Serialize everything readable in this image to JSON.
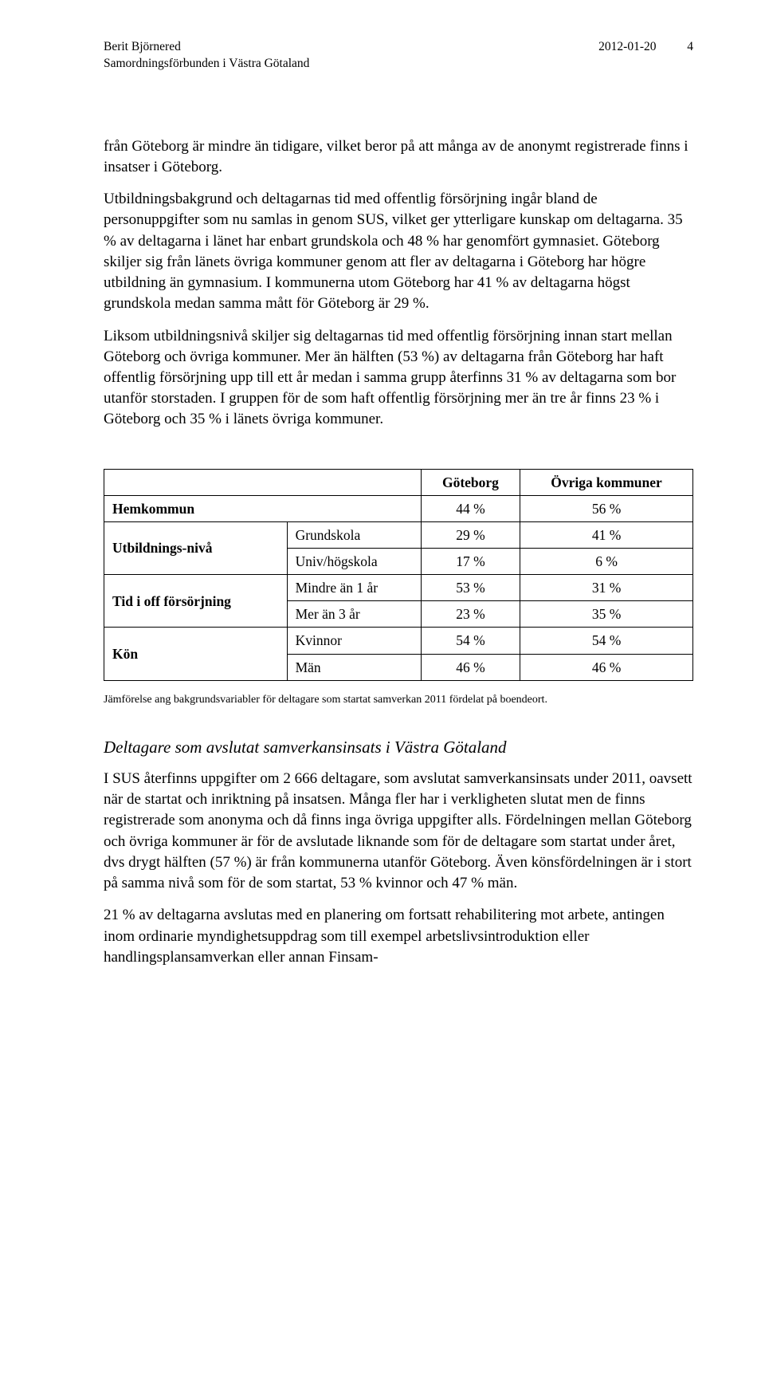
{
  "header": {
    "author": "Berit Björnered",
    "org": "Samordningsförbunden i Västra Götaland",
    "date": "2012-01-20",
    "page": "4"
  },
  "para1": "från Göteborg är mindre än tidigare, vilket beror på att många av de anonymt registrerade finns i insatser i Göteborg.",
  "para2": "Utbildningsbakgrund och deltagarnas tid med offentlig försörjning ingår bland de personuppgifter som nu samlas in genom SUS, vilket ger ytterligare kunskap om deltagarna. 35 % av deltagarna i länet har enbart grundskola och 48 % har genomfört gymnasiet. Göteborg skiljer sig från länets övriga kommuner genom att fler av deltagarna i Göteborg har högre utbildning än gymnasium. I kommunerna utom Göteborg har 41 % av deltagarna högst grundskola medan samma mått för Göteborg är 29 %.",
  "para3": "Liksom utbildningsnivå skiljer sig deltagarnas tid med offentlig försörjning innan start mellan Göteborg och övriga kommuner. Mer än hälften (53 %) av deltagarna från Göteborg har haft offentlig försörjning upp till ett år medan i samma grupp återfinns 31 % av deltagarna som bor utanför storstaden. I gruppen för de som haft offentlig försörjning mer än tre år finns 23 % i Göteborg och 35 % i länets övriga kommuner.",
  "table": {
    "col_goteborg": "Göteborg",
    "col_ovriga": "Övriga kommuner",
    "rows": {
      "hemkommun": {
        "label": "Hemkommun",
        "g": "44 %",
        "o": "56 %"
      },
      "utbildning": {
        "label": "Utbildnings-nivå",
        "r1": {
          "label": "Grundskola",
          "g": "29 %",
          "o": "41 %"
        },
        "r2": {
          "label": "Univ/högskola",
          "g": "17 %",
          "o": "6 %"
        }
      },
      "tid": {
        "label": "Tid i off försörjning",
        "r1": {
          "label": "Mindre än 1 år",
          "g": "53 %",
          "o": "31 %"
        },
        "r2": {
          "label": "Mer än 3 år",
          "g": "23 %",
          "o": "35 %"
        }
      },
      "kon": {
        "label": "Kön",
        "r1": {
          "label": "Kvinnor",
          "g": "54 %",
          "o": "54 %"
        },
        "r2": {
          "label": "Män",
          "g": "46 %",
          "o": "46 %"
        }
      }
    }
  },
  "caption": "Jämförelse ang bakgrundsvariabler för deltagare som startat samverkan 2011 fördelat på boendeort.",
  "section_heading": "Deltagare som avslutat samverkansinsats i Västra Götaland",
  "para4": "I SUS återfinns uppgifter om 2 666 deltagare, som avslutat samverkansinsats under 2011, oavsett när de startat och inriktning på insatsen. Många fler har i verkligheten slutat men de finns registrerade som anonyma och då finns inga övriga uppgifter alls. Fördelningen mellan Göteborg och övriga kommuner är för de avslutade liknande som för de deltagare som startat under året, dvs drygt hälften (57 %) är från kommunerna utanför Göteborg. Även könsfördelningen är i stort på samma nivå som för de som startat, 53 % kvinnor och 47 % män.",
  "para5": "21 % av deltagarna avslutas med en planering om fortsatt rehabilitering mot arbete, antingen inom ordinarie myndighetsuppdrag som till exempel arbetslivsintroduktion eller handlingsplansamverkan eller annan Finsam-"
}
